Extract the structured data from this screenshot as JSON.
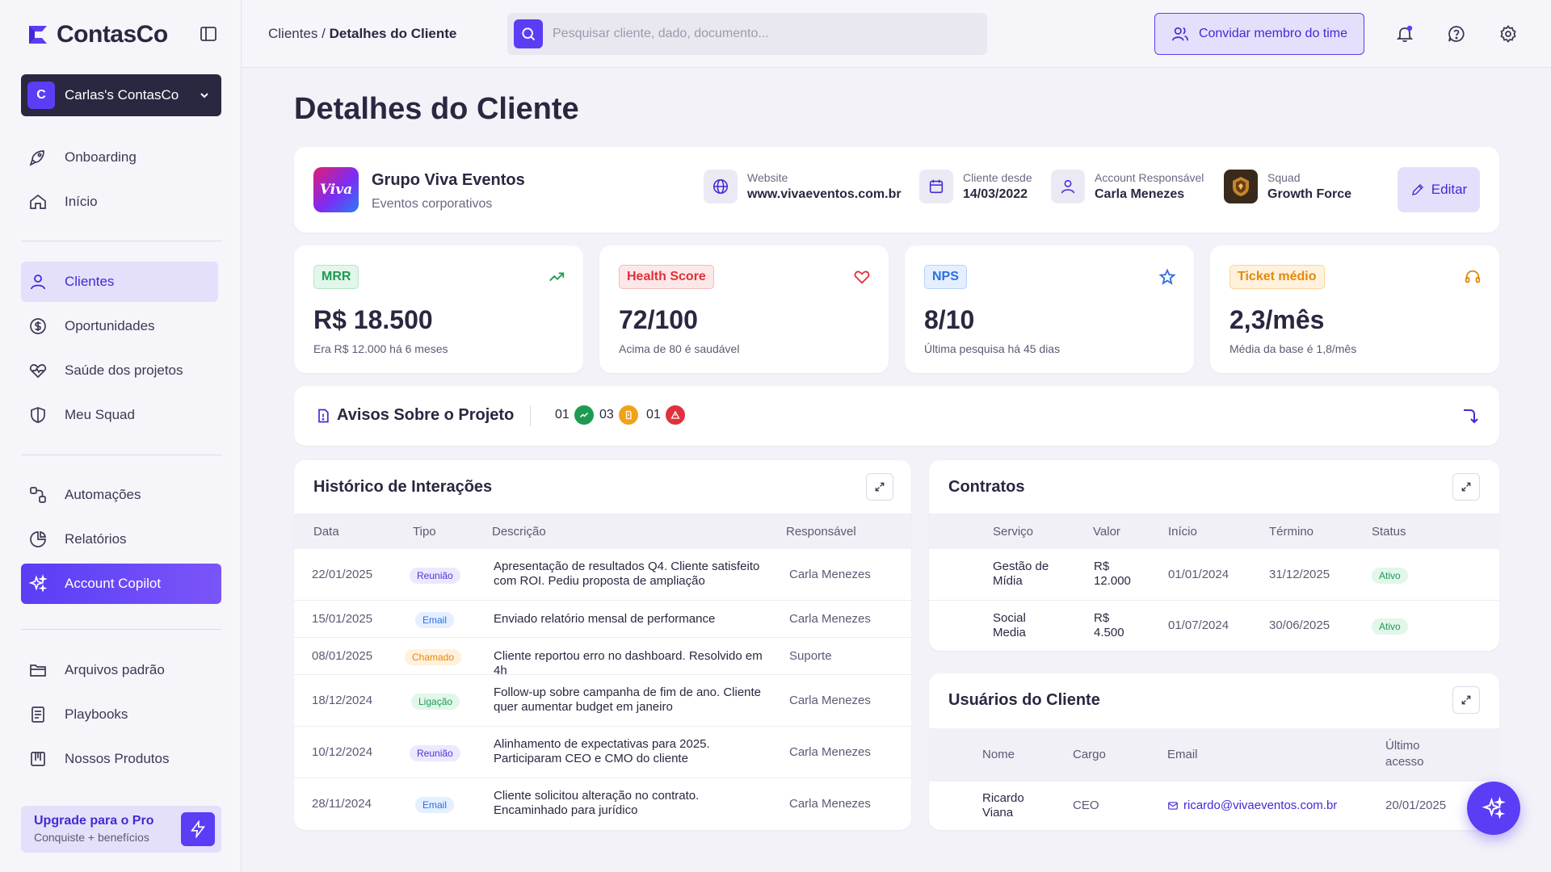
{
  "app": {
    "logo_main": "ContasCo"
  },
  "sidebar": {
    "workspace": {
      "initial": "C",
      "name": "Carlas's ContasCo"
    },
    "nav": {
      "onboarding": "Onboarding",
      "inicio": "Início",
      "clientes": "Clientes",
      "oportunidades": "Oportunidades",
      "saude": "Saúde dos projetos",
      "squad": "Meu Squad",
      "automacoes": "Automações",
      "relatorios": "Relatórios",
      "copilot": "Account Copilot",
      "arquivos": "Arquivos padrão",
      "playbooks": "Playbooks",
      "produtos": "Nossos Produtos"
    },
    "upgrade": {
      "title": "Upgrade para o Pro",
      "subtitle": "Conquiste + benefícios"
    }
  },
  "topbar": {
    "breadcrumb_parent": "Clientes /",
    "breadcrumb_current": "Detalhes do Cliente",
    "search_placeholder": "Pesquisar cliente, dado, documento...",
    "invite_label": "Convidar membro do time"
  },
  "page": {
    "title": "Detalhes do Cliente"
  },
  "client": {
    "logo_text": "Viva",
    "name": "Grupo Viva Eventos",
    "segment": "Eventos corporativos",
    "website_label": "Website",
    "website_value": "www.vivaeventos.com.br",
    "since_label": "Cliente desde",
    "since_value": "14/03/2022",
    "account_label": "Account Responsável",
    "account_value": "Carla Menezes",
    "squad_label": "Squad",
    "squad_value": "Growth Force",
    "edit_label": "Editar"
  },
  "kpis": [
    {
      "badge": "MRR",
      "value": "R$ 18.500",
      "sub": "Era R$ 12.000 há 6 meses",
      "color": "#1f9a53",
      "icon": "trending-up-icon"
    },
    {
      "badge": "Health Score",
      "value": "72/100",
      "sub": "Acima de 80 é saudável",
      "color": "#e0323c",
      "icon": "heart-icon"
    },
    {
      "badge": "NPS",
      "value": "8/10",
      "sub": "Última pesquisa há 45 dias",
      "color": "#2d6fe0",
      "icon": "star-icon"
    },
    {
      "badge": "Ticket médio",
      "value": "2,3/mês",
      "sub": "Média da base é 1,8/mês",
      "color": "#e08a0b",
      "icon": "headset-icon"
    }
  ],
  "alerts": {
    "title": "Avisos Sobre o Projeto",
    "counts": [
      {
        "value": "01",
        "color": "#1f9a53"
      },
      {
        "value": "03",
        "color": "#f0a21a"
      },
      {
        "value": "01",
        "color": "#e0323c"
      }
    ]
  },
  "history": {
    "title": "Histórico de Interações",
    "headers": [
      "Data",
      "Tipo",
      "Descrição",
      "Responsável"
    ],
    "rows": [
      {
        "date": "22/01/2025",
        "type": "Reunião",
        "kind": "reuniao",
        "desc": "Apresentação de resultados Q4. Cliente satisfeito com ROI. Pediu proposta de ampliação",
        "owner": "Carla Menezes"
      },
      {
        "date": "15/01/2025",
        "type": "Email",
        "kind": "email",
        "desc": "Enviado relatório mensal de performance",
        "owner": "Carla Menezes"
      },
      {
        "date": "08/01/2025",
        "type": "Chamado",
        "kind": "chamado",
        "desc": "Cliente reportou erro no dashboard. Resolvido em 4h",
        "owner": "Suporte"
      },
      {
        "date": "18/12/2024",
        "type": "Ligação",
        "kind": "ligacao",
        "desc": "Follow-up sobre campanha de fim de ano. Cliente quer aumentar budget em janeiro",
        "owner": "Carla Menezes"
      },
      {
        "date": "10/12/2024",
        "type": "Reunião",
        "kind": "reuniao",
        "desc": "Alinhamento de expectativas para 2025. Participaram CEO e CMO do cliente",
        "owner": "Carla Menezes"
      },
      {
        "date": "28/11/2024",
        "type": "Email",
        "kind": "email",
        "desc": "Cliente solicitou alteração no contrato. Encaminhado para jurídico",
        "owner": "Carla Menezes"
      }
    ]
  },
  "contracts": {
    "title": "Contratos",
    "headers": [
      "Serviço",
      "Valor",
      "Início",
      "Término",
      "Status"
    ],
    "rows": [
      {
        "service": "Gestão de Mídia",
        "value": "R$ 12.000",
        "start": "01/01/2024",
        "end": "31/12/2025",
        "status": "Ativo"
      },
      {
        "service": "Social Media",
        "value": "R$ 4.500",
        "start": "01/07/2024",
        "end": "30/06/2025",
        "status": "Ativo"
      }
    ]
  },
  "users": {
    "title": "Usuários do Cliente",
    "headers": [
      "Nome",
      "Cargo",
      "Email",
      "Último acesso"
    ],
    "rows": [
      {
        "name": "Ricardo Viana",
        "role": "CEO",
        "email": "ricardo@vivaeventos.com.br",
        "last": "20/01/2025"
      }
    ]
  }
}
